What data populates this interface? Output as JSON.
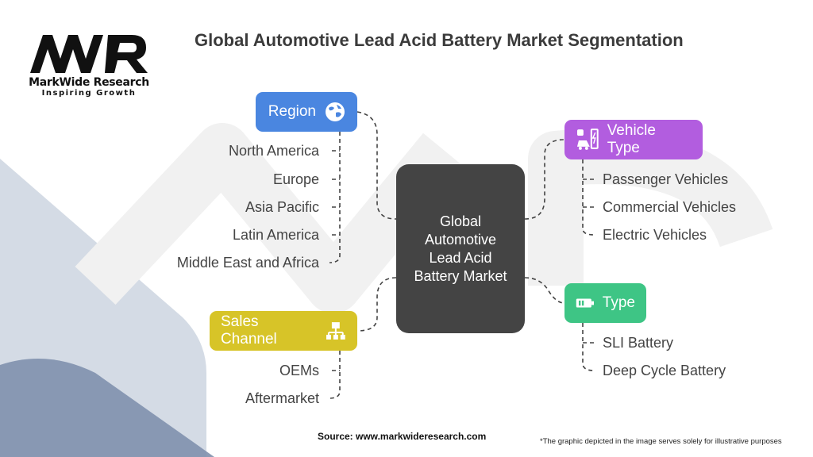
{
  "title": "Global Automotive Lead Acid Battery Market Segmentation",
  "logo": {
    "mark": "MWR",
    "name": "MarkWide Research",
    "tagline": "Inspiring Growth"
  },
  "center": "Global Automotive Lead Acid Battery Market",
  "colors": {
    "region": "#4a86e0",
    "vehicle_type": "#b25ddf",
    "type": "#3ec585",
    "sales_channel": "#d7c428",
    "center": "#444444"
  },
  "segments": {
    "region": {
      "label": "Region",
      "icon": "globe-icon",
      "items": [
        "North America",
        "Europe",
        "Asia Pacific",
        "Latin America",
        "Middle East and Africa"
      ]
    },
    "vehicle_type": {
      "label": "Vehicle Type",
      "icon": "ev-charging-car-icon",
      "items": [
        "Passenger Vehicles",
        "Commercial Vehicles",
        "Electric Vehicles"
      ]
    },
    "type": {
      "label": "Type",
      "icon": "battery-icon",
      "items": [
        "SLI Battery",
        "Deep Cycle Battery"
      ]
    },
    "sales_channel": {
      "label": "Sales Channel",
      "icon": "hierarchy-icon",
      "items": [
        "OEMs",
        "Aftermarket"
      ]
    }
  },
  "source": "Source: www.markwideresearch.com",
  "note": "*The graphic depicted in the image serves solely for illustrative purposes"
}
